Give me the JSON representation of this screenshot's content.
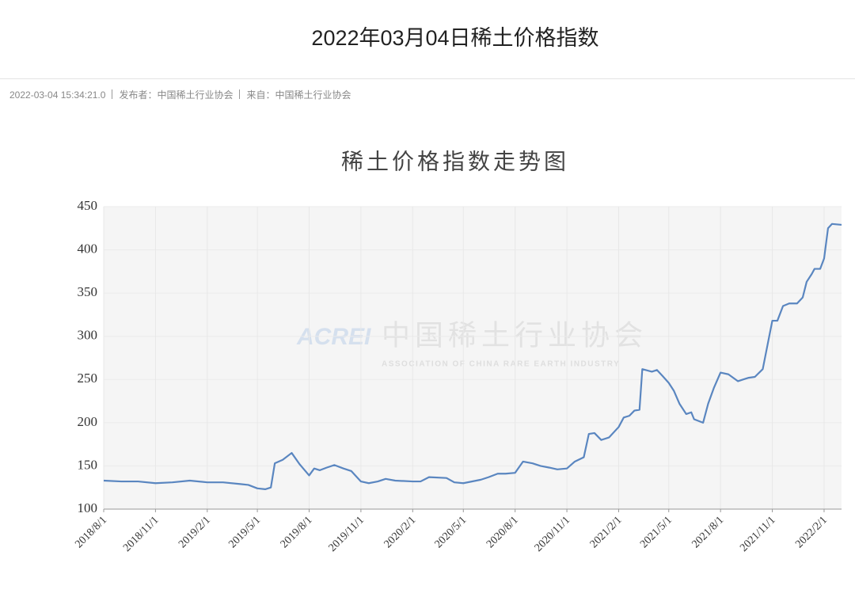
{
  "header": {
    "title": "2022年03月04日稀土价格指数",
    "date": "2022-03-04 15:34:21.0",
    "publisher": "发布者：中国稀土行业协会",
    "source": "来自：中国稀土行业协会"
  },
  "watermark": {
    "logo": "ACREI",
    "name": "中国稀土行业协会",
    "english": "ASSOCIATION OF CHINA RARE EARTH INDUSTRY"
  },
  "chart_data": {
    "type": "line",
    "title": "稀土价格指数走势图",
    "color": "#5a86c0",
    "grid": true,
    "x": [
      "2018/8/1",
      "2018/9/1",
      "2018/10/1",
      "2018/11/1",
      "2018/12/1",
      "2019/1/1",
      "2019/2/1",
      "2019/3/1",
      "2019/4/1",
      "2019/4/15",
      "2019/5/1",
      "2019/5/15",
      "2019/5/25",
      "2019/6/1",
      "2019/6/15",
      "2019/7/1",
      "2019/7/15",
      "2019/8/1",
      "2019/8/10",
      "2019/8/20",
      "2019/9/1",
      "2019/9/15",
      "2019/10/1",
      "2019/10/15",
      "2019/11/1",
      "2019/11/15",
      "2019/12/1",
      "2019/12/15",
      "2020/1/1",
      "2020/2/1",
      "2020/2/15",
      "2020/3/1",
      "2020/4/1",
      "2020/4/15",
      "2020/5/1",
      "2020/6/1",
      "2020/6/15",
      "2020/7/1",
      "2020/7/15",
      "2020/8/1",
      "2020/8/15",
      "2020/9/1",
      "2020/9/15",
      "2020/10/1",
      "2020/10/15",
      "2020/11/1",
      "2020/11/15",
      "2020/12/1",
      "2020/12/10",
      "2020/12/20",
      "2021/1/1",
      "2021/1/15",
      "2021/2/1",
      "2021/2/10",
      "2021/2/20",
      "2021/3/1",
      "2021/3/10",
      "2021/3/15",
      "2021/4/1",
      "2021/4/10",
      "2021/4/20",
      "2021/5/1",
      "2021/5/10",
      "2021/5/20",
      "2021/6/1",
      "2021/6/10",
      "2021/6/15",
      "2021/7/1",
      "2021/7/10",
      "2021/7/20",
      "2021/8/1",
      "2021/8/15",
      "2021/9/1",
      "2021/9/10",
      "2021/9/20",
      "2021/10/1",
      "2021/10/15",
      "2021/10/25",
      "2021/11/1",
      "2021/11/10",
      "2021/11/20",
      "2021/12/1",
      "2021/12/15",
      "2021/12/25",
      "2022/1/1",
      "2022/1/10",
      "2022/1/15",
      "2022/1/25",
      "2022/2/1",
      "2022/2/8",
      "2022/2/15",
      "2022/3/4"
    ],
    "values": [
      133,
      132,
      132,
      130,
      131,
      133,
      131,
      131,
      129,
      128,
      124,
      123,
      125,
      153,
      157,
      165,
      152,
      139,
      147,
      145,
      148,
      151,
      147,
      144,
      132,
      130,
      132,
      135,
      133,
      132,
      132,
      137,
      136,
      131,
      130,
      134,
      137,
      141,
      141,
      142,
      155,
      153,
      150,
      148,
      146,
      147,
      155,
      160,
      187,
      188,
      180,
      183,
      195,
      206,
      208,
      214,
      215,
      262,
      259,
      261,
      254,
      246,
      237,
      222,
      210,
      212,
      204,
      200,
      222,
      240,
      258,
      256,
      248,
      250,
      252,
      253,
      262,
      295,
      318,
      318,
      335,
      338,
      338,
      345,
      363,
      372,
      378,
      378,
      390,
      425,
      430,
      429
    ],
    "xlim": [
      "2018/8/1",
      "2022/3/4"
    ],
    "xticks": [
      "2018/8/1",
      "2018/11/1",
      "2019/2/1",
      "2019/5/1",
      "2019/8/1",
      "2019/11/1",
      "2020/2/1",
      "2020/5/1",
      "2020/8/1",
      "2020/11/1",
      "2021/2/1",
      "2021/5/1",
      "2021/8/1",
      "2021/11/1",
      "2022/2/1"
    ],
    "ylim": [
      100,
      450
    ],
    "yticks": [
      100,
      150,
      200,
      250,
      300,
      350,
      400,
      450
    ]
  }
}
